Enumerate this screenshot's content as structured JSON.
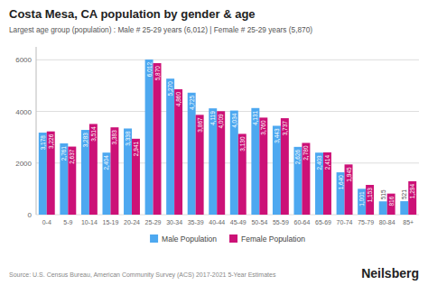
{
  "chart_data": {
    "type": "bar",
    "title": "Costa Mesa, CA population by gender & age",
    "subtitle": "Largest age group (population) : Male # 25-29 years (6,012) | Female # 25-29 years (5,870)",
    "categories": [
      "0-4",
      "5-9",
      "10-14",
      "15-19",
      "20-24",
      "25-29",
      "30-34",
      "35-39",
      "40-44",
      "45-49",
      "50-54",
      "55-59",
      "60-64",
      "65-69",
      "70-74",
      "75-79",
      "80-84",
      "85+"
    ],
    "series": [
      {
        "name": "Male Population",
        "color": "#4da8f0",
        "values": [
          3178,
          2761,
          3283,
          2404,
          3338,
          6012,
          5270,
          4725,
          4119,
          4034,
          4131,
          3443,
          2626,
          2403,
          1640,
          1001,
          515,
          521
        ],
        "value_labels": [
          "3,178",
          "2,761",
          "3,283",
          "2,404",
          "3,338",
          "6,012",
          "5,270",
          "4,725",
          "4,119",
          "4,034",
          "4,131",
          "3,443",
          "2,626",
          "2,403",
          "1,640",
          "1,001",
          "515",
          "521"
        ]
      },
      {
        "name": "Female Population",
        "color": "#cc1177",
        "values": [
          3226,
          2637,
          3514,
          3383,
          2941,
          5870,
          4860,
          3867,
          4009,
          3130,
          3760,
          3737,
          2780,
          2414,
          1945,
          1153,
          816,
          1294
        ],
        "value_labels": [
          "3,226",
          "2,637",
          "3,514",
          "3,383",
          "2,941",
          "5,870",
          "4,860",
          "3,867",
          "4,009",
          "3,130",
          "3,760",
          "3,737",
          "2,780",
          "2,414",
          "1,945",
          "1,153",
          "816",
          "1,294"
        ]
      }
    ],
    "ylim": [
      0,
      6500
    ],
    "yticks": [
      0,
      2000,
      4000,
      6000
    ],
    "grid": true,
    "legend": "bottom",
    "data_labels": true,
    "annotations": [
      "Source: U.S. Census Bureau, American Community Survey (ACS) 2017-2021 5-Year Estimates",
      "Neilsberg"
    ]
  }
}
